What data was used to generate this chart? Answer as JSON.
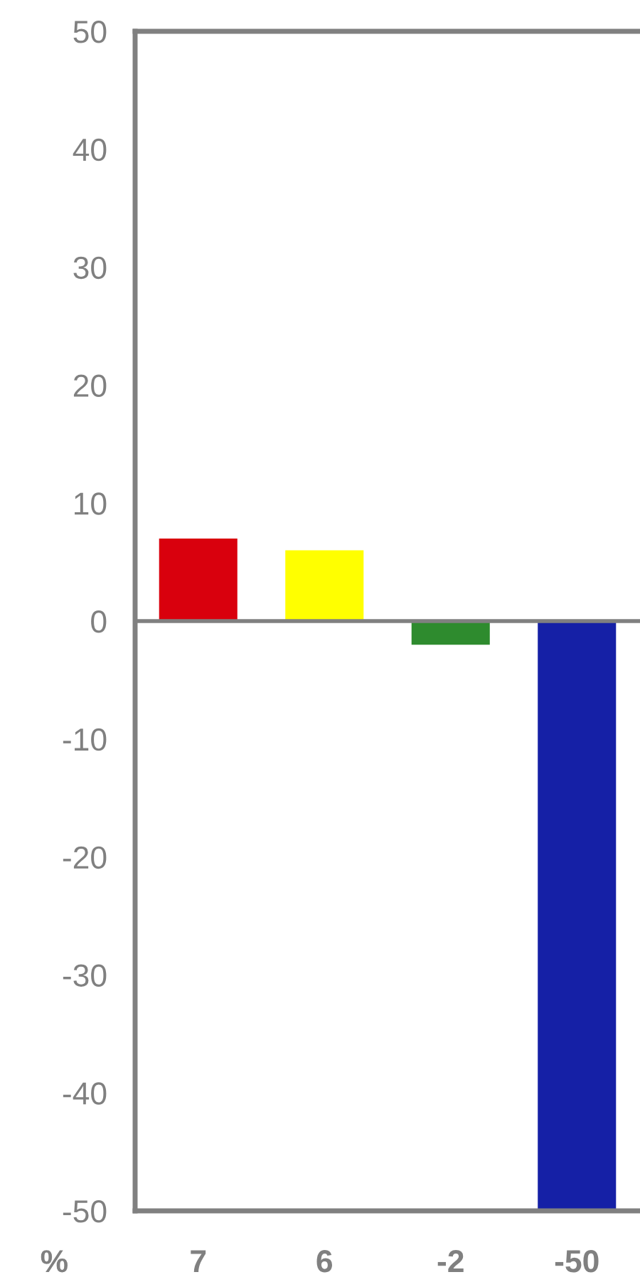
{
  "chart_data": {
    "type": "bar",
    "ylabel": "%",
    "categories": [
      null,
      null,
      null,
      null
    ],
    "values": [
      7,
      6,
      -2,
      -50
    ],
    "colors": [
      "#d9000d",
      "#ffff00",
      "#2e8b2e",
      "#1520a6"
    ],
    "ylim": [
      -50,
      50
    ],
    "yticks": [
      -50,
      -40,
      -30,
      -20,
      -10,
      0,
      10,
      20,
      30,
      40,
      50
    ],
    "ref_lines": [
      {
        "axis": "y",
        "value": 0,
        "color": "#808080"
      }
    ],
    "data_labels": true,
    "tick_labels": "y",
    "grid": false,
    "legend": false
  }
}
